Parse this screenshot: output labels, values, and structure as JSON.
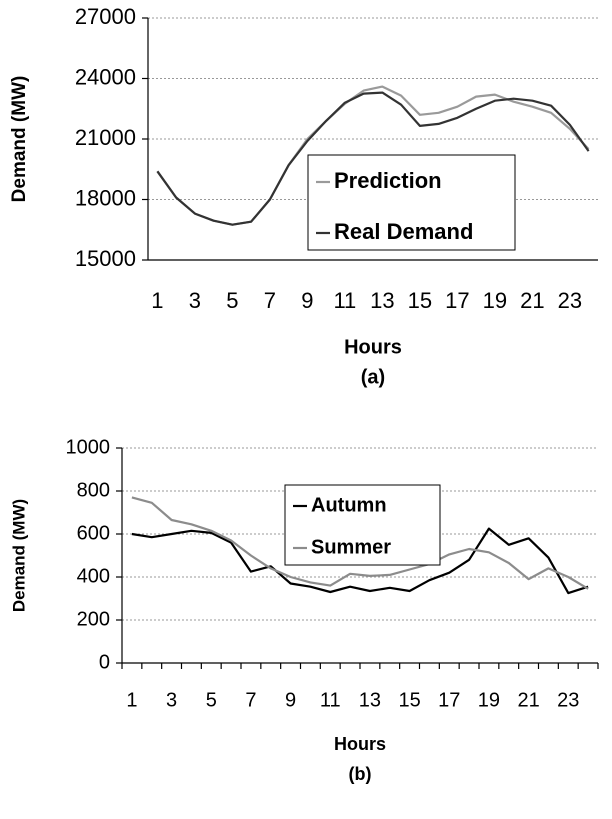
{
  "chart_data": [
    {
      "type": "line",
      "caption": "(a)",
      "xlabel": "Hours",
      "ylabel": "Demand (MW)",
      "categories": [
        1,
        null,
        3,
        null,
        5,
        null,
        7,
        null,
        9,
        null,
        11,
        null,
        13,
        null,
        15,
        null,
        17,
        null,
        19,
        null,
        21,
        null,
        23,
        null
      ],
      "ylim": [
        15000,
        27000
      ],
      "yticks": [
        15000,
        18000,
        21000,
        24000,
        27000
      ],
      "grid": true,
      "series": [
        {
          "name": "Prediction",
          "color": "#9a9a9a",
          "values": [
            19400,
            18100,
            17300,
            16950,
            16750,
            16900,
            18000,
            19700,
            21000,
            21900,
            22750,
            23400,
            23600,
            23150,
            22200,
            22300,
            22600,
            23100,
            23200,
            22850,
            22600,
            22300,
            21500,
            20500
          ]
        },
        {
          "name": "Real Demand",
          "color": "#333333",
          "values": [
            19400,
            18100,
            17300,
            16950,
            16750,
            16900,
            18000,
            19700,
            20900,
            21900,
            22800,
            23250,
            23300,
            22700,
            21650,
            21750,
            22050,
            22500,
            22900,
            23000,
            22900,
            22650,
            21700,
            20400
          ]
        }
      ]
    },
    {
      "type": "line",
      "caption": "(b)",
      "xlabel": "Hours",
      "ylabel": "Demand (MW)",
      "categories": [
        1,
        null,
        3,
        null,
        5,
        null,
        7,
        null,
        9,
        null,
        11,
        null,
        13,
        null,
        15,
        null,
        17,
        null,
        19,
        null,
        21,
        null,
        23,
        null
      ],
      "ylim": [
        0,
        1000
      ],
      "yticks": [
        0,
        200,
        400,
        600,
        800,
        1000
      ],
      "grid": true,
      "series": [
        {
          "name": "Autumn",
          "color": "#000000",
          "values": [
            600,
            585,
            600,
            615,
            605,
            560,
            425,
            450,
            370,
            355,
            330,
            355,
            335,
            350,
            335,
            385,
            420,
            480,
            625,
            550,
            580,
            490,
            325,
            355
          ]
        },
        {
          "name": "Summer",
          "color": "#8c8c8c",
          "values": [
            770,
            745,
            665,
            645,
            615,
            570,
            500,
            440,
            400,
            375,
            360,
            415,
            405,
            410,
            435,
            460,
            505,
            530,
            515,
            465,
            390,
            440,
            400,
            345
          ]
        }
      ]
    }
  ]
}
